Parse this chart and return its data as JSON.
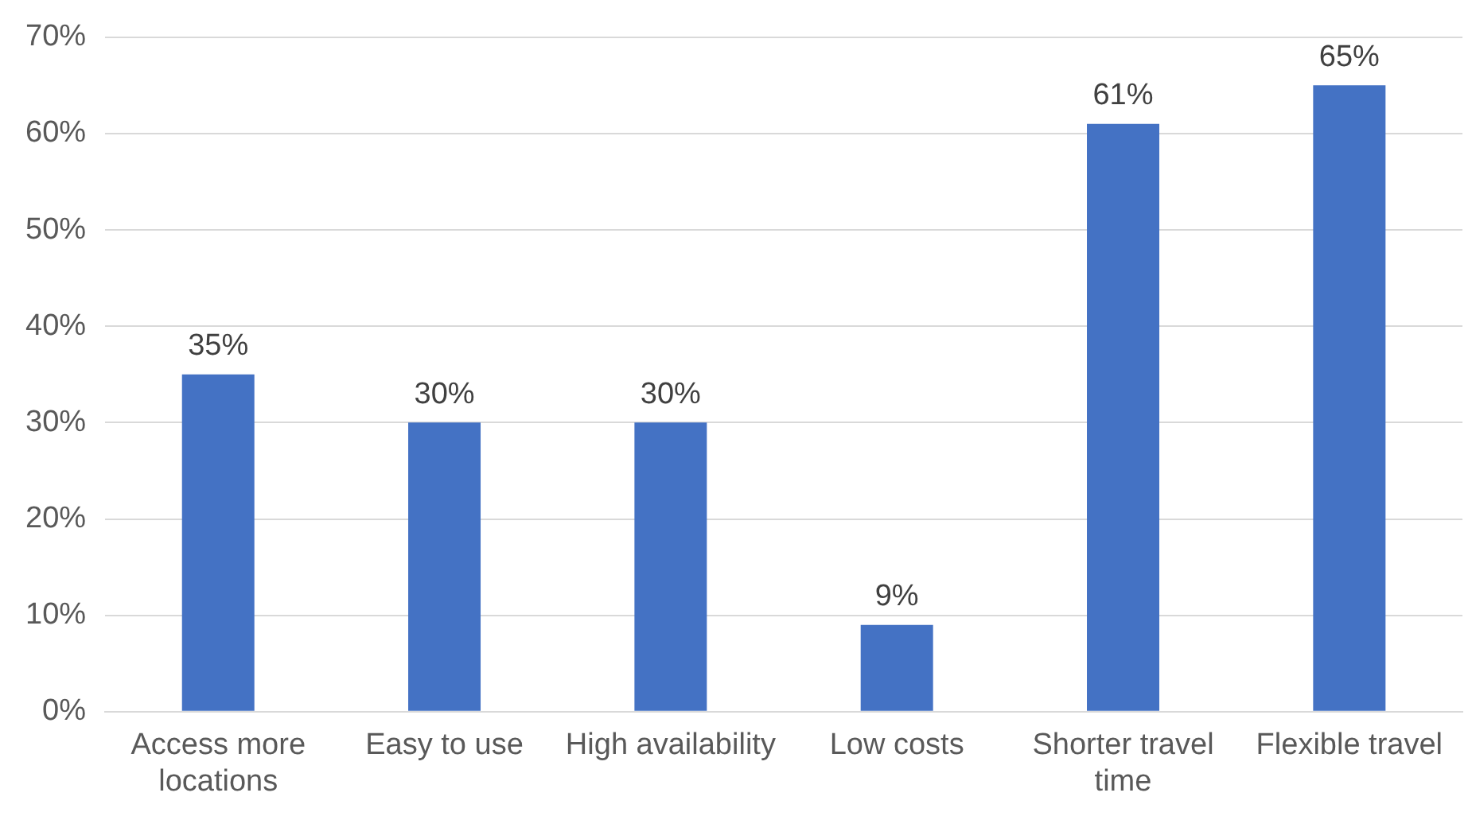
{
  "chart_data": {
    "type": "bar",
    "categories": [
      "Access more locations",
      "Easy to use",
      "High availability",
      "Low costs",
      "Shorter travel time",
      "Flexible travel"
    ],
    "values": [
      35,
      30,
      30,
      9,
      61,
      65
    ],
    "value_labels": [
      "35%",
      "30%",
      "30%",
      "9%",
      "61%",
      "65%"
    ],
    "color": "#4472c4",
    "ylim": [
      0,
      70
    ],
    "yticks": [
      {
        "value": 0,
        "label": "0%"
      },
      {
        "value": 10,
        "label": "10%"
      },
      {
        "value": 20,
        "label": "20%"
      },
      {
        "value": 30,
        "label": "30%"
      },
      {
        "value": 40,
        "label": "40%"
      },
      {
        "value": 50,
        "label": "50%"
      },
      {
        "value": 60,
        "label": "60%"
      },
      {
        "value": 70,
        "label": "70%"
      }
    ],
    "grid": "y",
    "legend": false
  }
}
